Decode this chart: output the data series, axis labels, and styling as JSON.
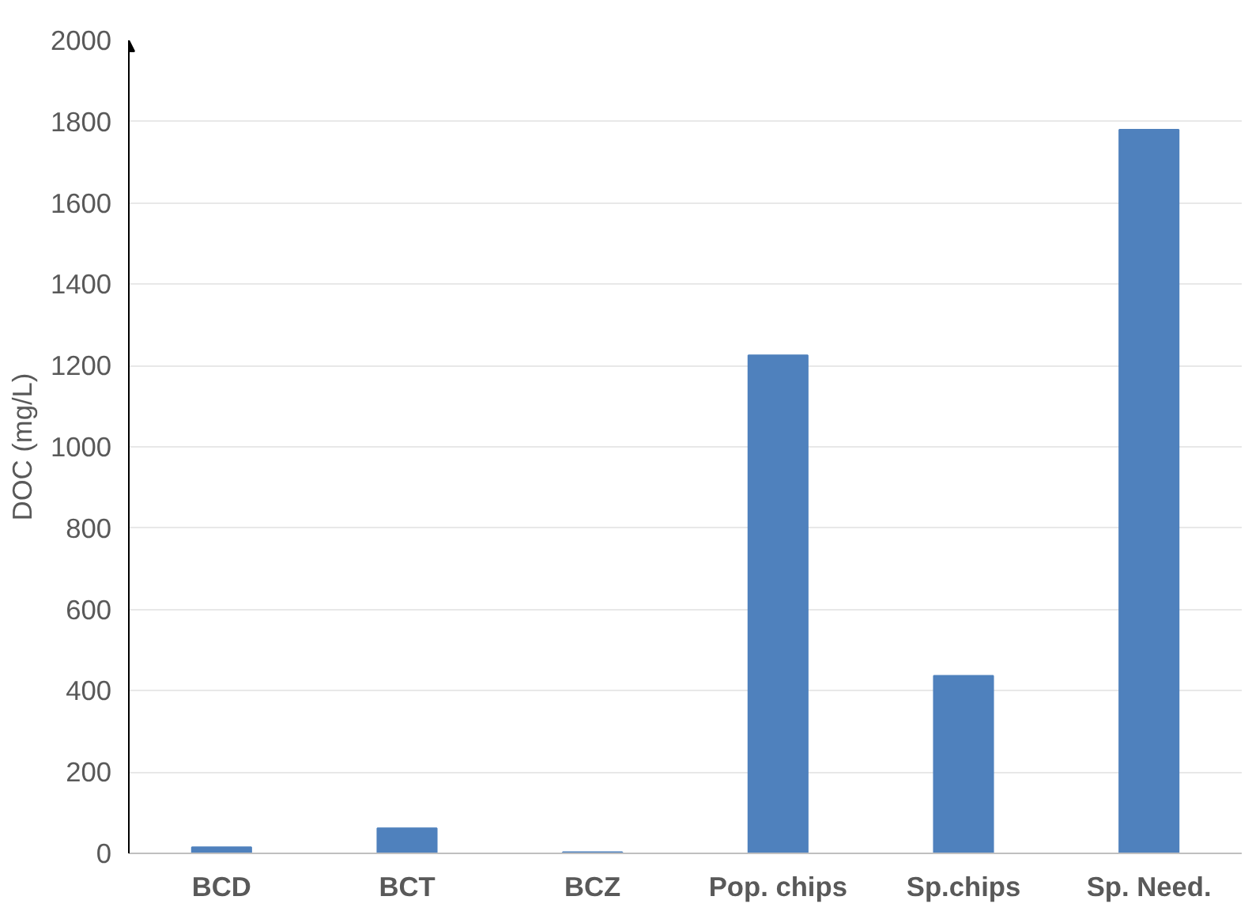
{
  "chart_data": {
    "type": "bar",
    "ylabel": "DOC (mg/L)",
    "categories": [
      "BCD",
      "BCT",
      "BCZ",
      "Pop. chips",
      "Sp.chips",
      "Sp. Need."
    ],
    "values": [
      15,
      62,
      3,
      1225,
      437,
      1780
    ],
    "color": "#4f81bd",
    "ylim": [
      0,
      2000
    ],
    "yticks": [
      0,
      200,
      400,
      600,
      800,
      1000,
      1200,
      1400,
      1600,
      1800,
      2000
    ],
    "grid": "y"
  }
}
